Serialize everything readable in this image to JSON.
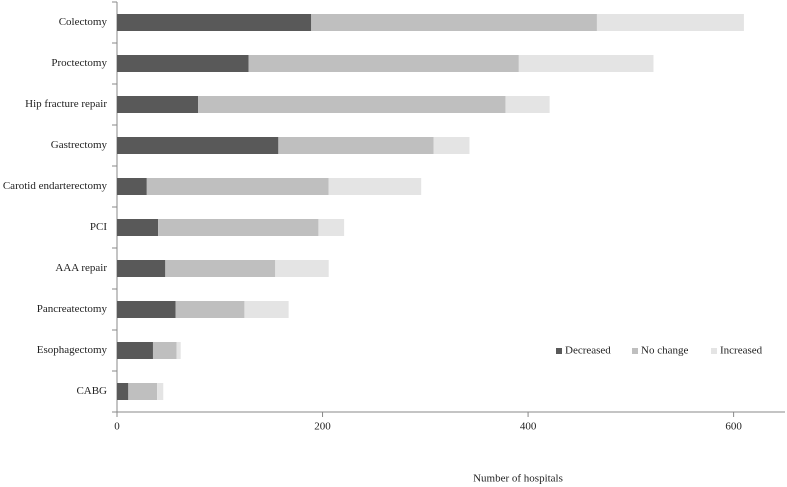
{
  "chart_data": {
    "type": "stacked_barh",
    "xlabel": "Number of hospitals",
    "categories": [
      "Colectomy",
      "Proctectomy",
      "Hip fracture repair",
      "Gastrectomy",
      "Carotid endarterectomy",
      "PCI",
      "AAA repair",
      "Pancreatectomy",
      "Esophagectomy",
      "CABG"
    ],
    "series": [
      {
        "name": "Decreased",
        "color": "#595959",
        "values": [
          189,
          128,
          79,
          157,
          29,
          40,
          47,
          57,
          35,
          11
        ]
      },
      {
        "name": "No change",
        "color": "#bfbfbf",
        "values": [
          278,
          263,
          299,
          151,
          177,
          156,
          107,
          67,
          23,
          28
        ]
      },
      {
        "name": "Increased",
        "color": "#e4e4e4",
        "values": [
          143,
          131,
          43,
          35,
          90,
          25,
          52,
          43,
          4,
          6
        ]
      }
    ],
    "xlim": [
      0,
      650
    ],
    "xticks": [
      0,
      200,
      400,
      600
    ],
    "grid": false,
    "legend": "lower right"
  }
}
